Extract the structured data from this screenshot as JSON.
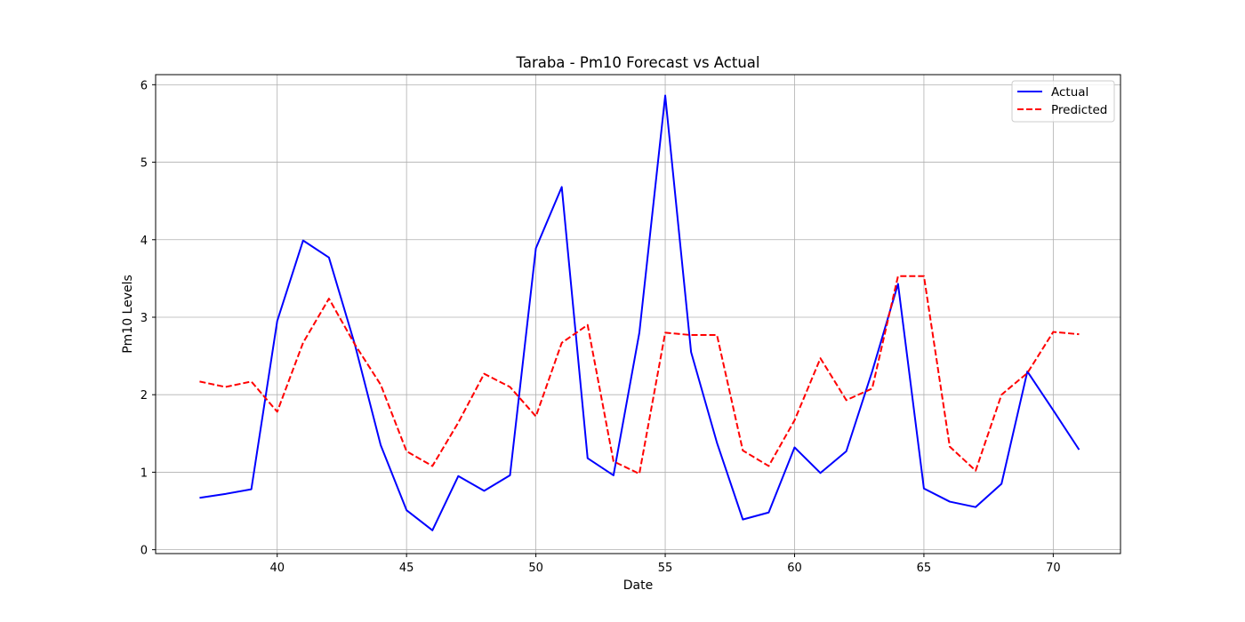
{
  "chart_data": {
    "type": "line",
    "title": "Taraba - Pm10 Forecast vs Actual",
    "xlabel": "Date",
    "ylabel": "Pm10 Levels",
    "xlim": [
      35.3,
      72.6
    ],
    "ylim": [
      -0.05,
      6.13
    ],
    "xticks": [
      40,
      45,
      50,
      55,
      60,
      65,
      70
    ],
    "yticks": [
      0,
      1,
      2,
      3,
      4,
      5,
      6
    ],
    "grid": true,
    "legend_position": "top-right",
    "x": [
      37,
      38,
      39,
      40,
      41,
      42,
      43,
      44,
      45,
      46,
      47,
      48,
      49,
      50,
      51,
      52,
      53,
      54,
      55,
      56,
      57,
      58,
      59,
      60,
      61,
      62,
      63,
      64,
      65,
      66,
      67,
      68,
      69,
      70,
      71
    ],
    "series": [
      {
        "name": "Actual",
        "color": "#0000ff",
        "style": "solid",
        "values": [
          0.67,
          0.72,
          0.78,
          2.95,
          3.99,
          3.77,
          2.65,
          1.35,
          0.51,
          0.25,
          0.95,
          0.76,
          0.96,
          3.89,
          4.68,
          1.18,
          0.96,
          2.8,
          5.86,
          2.55,
          1.38,
          0.39,
          0.48,
          1.32,
          0.99,
          1.27,
          2.3,
          3.43,
          0.79,
          0.62,
          0.55,
          0.85,
          2.3,
          1.8,
          1.29
        ]
      },
      {
        "name": "Predicted",
        "color": "#ff0000",
        "style": "dashed",
        "values": [
          2.17,
          2.1,
          2.17,
          1.78,
          2.67,
          3.24,
          2.65,
          2.13,
          1.27,
          1.08,
          1.64,
          2.27,
          2.1,
          1.72,
          2.67,
          2.9,
          1.14,
          0.98,
          2.8,
          2.77,
          2.77,
          1.28,
          1.08,
          1.67,
          2.47,
          1.93,
          2.08,
          3.53,
          3.53,
          1.33,
          1.02,
          2.0,
          2.28,
          2.81,
          2.78
        ]
      }
    ]
  }
}
